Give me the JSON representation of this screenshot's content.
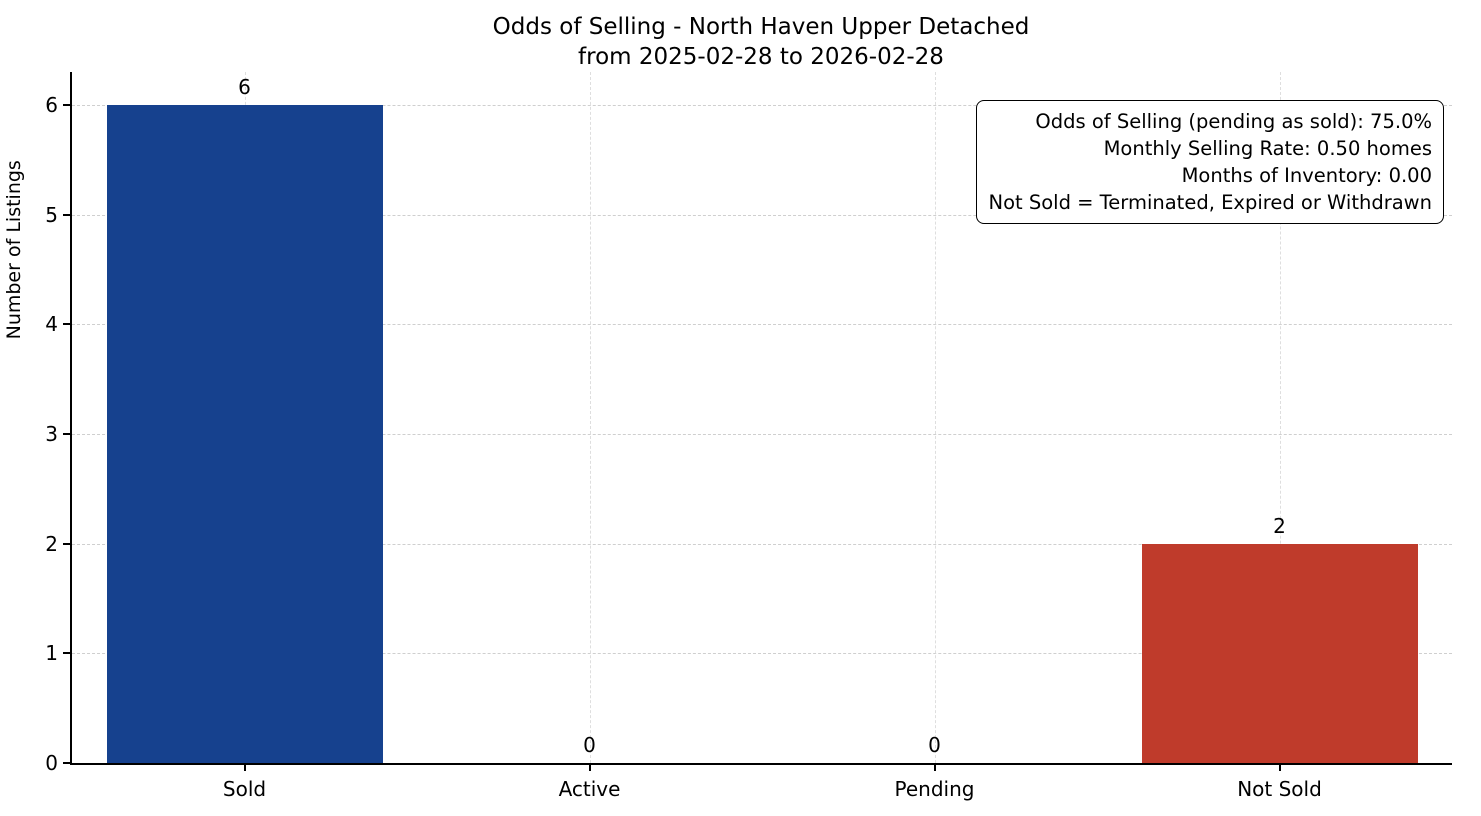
{
  "chart_data": {
    "type": "bar",
    "title": "Odds of Selling - North Haven Upper Detached",
    "subtitle": "from 2025-02-28 to 2026-02-28",
    "categories": [
      "Sold",
      "Active",
      "Pending",
      "Not Sold"
    ],
    "values": [
      6,
      0,
      0,
      2
    ],
    "bar_colors": [
      "#16418e",
      "#16418e",
      "#16418e",
      "#bf3b2b"
    ],
    "xlabel": "",
    "ylabel": "Number of Listings",
    "ylim": [
      0,
      6.3
    ],
    "yticks": [
      0,
      1,
      2,
      3,
      4,
      5,
      6
    ],
    "grid": true,
    "grid_style": "dashed",
    "legend_position": "none",
    "bar_width_fraction": 0.8
  },
  "annotation": {
    "lines": [
      "Odds of Selling (pending as sold): 75.0%",
      "Monthly Selling Rate: 0.50 homes",
      "Months of Inventory: 0.00",
      "Not Sold = Terminated, Expired or Withdrawn"
    ]
  }
}
